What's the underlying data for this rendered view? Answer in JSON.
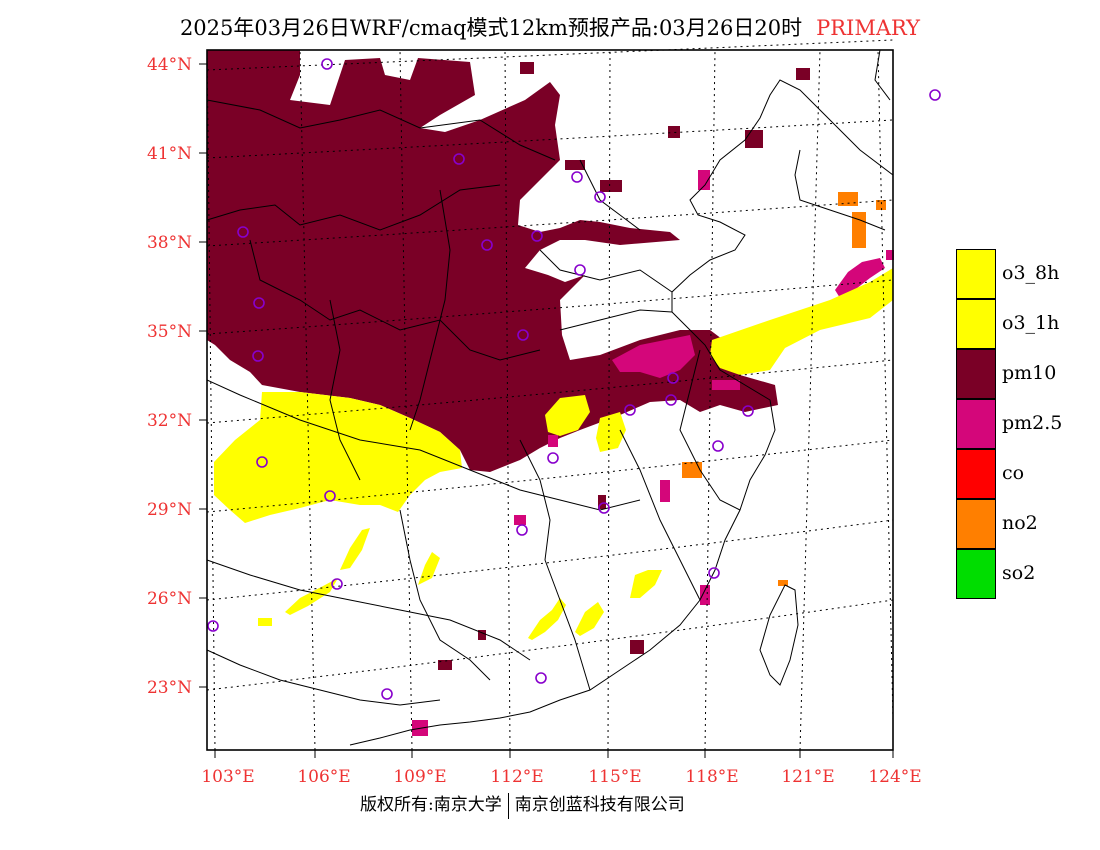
{
  "title": {
    "main": "2025年03月26日WRF/cmaq模式12km预报产品:03月26日20时",
    "tag": "PRIMARY"
  },
  "axes": {
    "lat_labels": [
      "44°N",
      "41°N",
      "38°N",
      "35°N",
      "32°N",
      "29°N",
      "26°N",
      "23°N"
    ],
    "lon_labels": [
      "103°E",
      "106°E",
      "109°E",
      "112°E",
      "115°E",
      "118°E",
      "121°E",
      "124°E"
    ]
  },
  "legend": [
    {
      "label": "o3_8h",
      "color": "#ffff00"
    },
    {
      "label": "o3_1h",
      "color": "#ffff00"
    },
    {
      "label": "pm10",
      "color": "#7a0026"
    },
    {
      "label": "pm2.5",
      "color": "#d4067a"
    },
    {
      "label": "co",
      "color": "#ff0000"
    },
    {
      "label": "no2",
      "color": "#ff7f00"
    },
    {
      "label": "so2",
      "color": "#00dd00"
    }
  ],
  "footer": {
    "left": "版权所有:南京大学",
    "right": "南京创蓝科技有限公司"
  },
  "colors": {
    "pm10": "#7a0026",
    "pm25": "#d4067a",
    "o3": "#ffff00",
    "no2": "#ff7f00",
    "station_marker": "#8800cc",
    "label_red": "#ee3333"
  }
}
